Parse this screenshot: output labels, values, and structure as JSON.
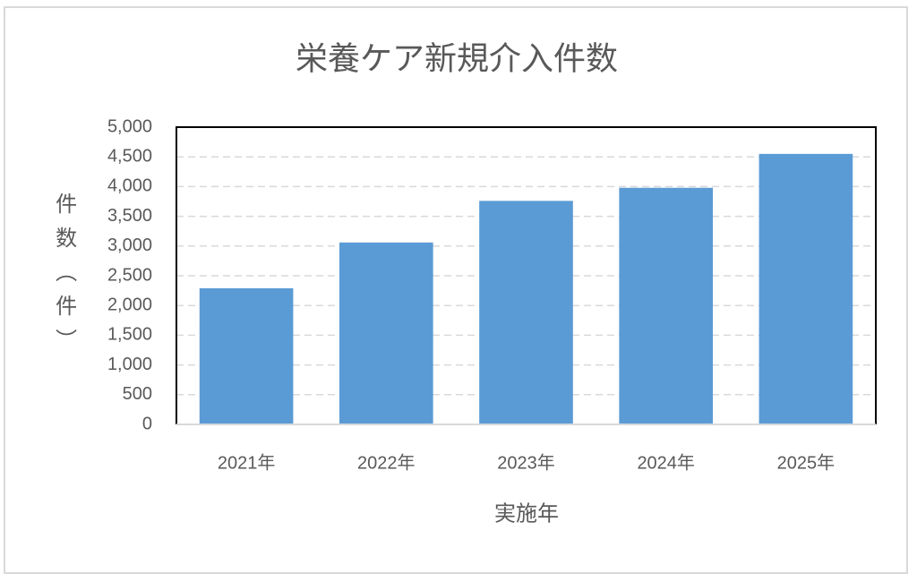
{
  "chart_data": {
    "type": "bar",
    "title": "栄養ケア新規介入件数",
    "x_label": "実施年",
    "y_label": "件数（件）",
    "categories": [
      "2021年",
      "2022年",
      "2023年",
      "2024年",
      "2025年"
    ],
    "values": [
      2290,
      3060,
      3760,
      3980,
      4550
    ],
    "color": "#5b9bd5",
    "ylim": [
      0,
      5000
    ],
    "yticks": [
      0,
      500,
      {
        "value": 1000,
        "label": "1,000"
      },
      {
        "value": 1500,
        "label": "1,500"
      },
      {
        "value": 2000,
        "label": "2,000"
      },
      {
        "value": 2500,
        "label": "2,500"
      },
      {
        "value": 3000,
        "label": "3,000"
      },
      {
        "value": 3500,
        "label": "3,500"
      },
      {
        "value": 4000,
        "label": "4,000"
      },
      {
        "value": 4500,
        "label": "4,500"
      },
      {
        "value": 5000,
        "label": "5,000"
      }
    ],
    "grid": true
  }
}
